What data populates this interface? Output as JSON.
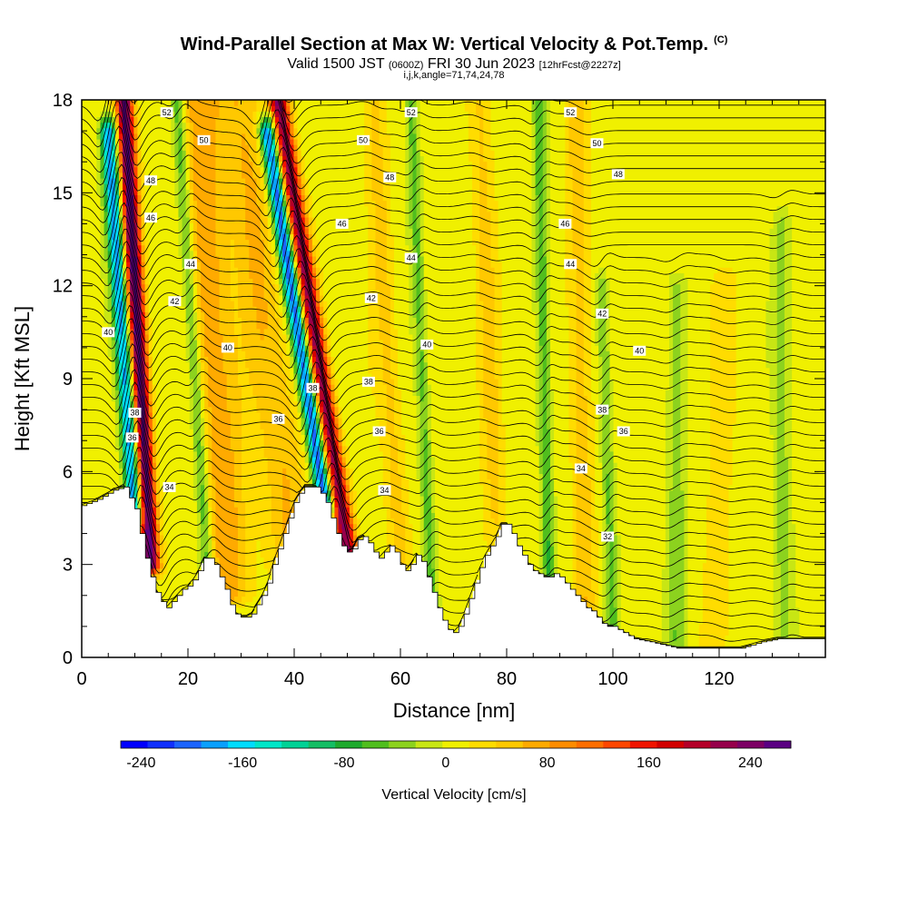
{
  "header": {
    "title": "Wind-Parallel Section at Max W: Vertical Velocity & Pot.Temp.",
    "copyright_mark": "(C)",
    "valid_prefix": "Valid 1500 JST",
    "valid_utc": "(0600Z)",
    "valid_date": "FRI 30 Jun 2023",
    "forecast_info": "[12hrFcst@2227z]",
    "section_indices": "i,j,k,angle=71,74,24,78"
  },
  "chart_data": {
    "type": "heatmap",
    "xlabel": "Distance [nm]",
    "ylabel": "Height [Kft MSL]",
    "xlim": [
      0,
      140
    ],
    "ylim": [
      0,
      18
    ],
    "xticks": [
      0,
      20,
      40,
      60,
      80,
      100,
      120
    ],
    "yticks": [
      0,
      3,
      6,
      9,
      12,
      15,
      18
    ],
    "colorbar": {
      "label": "Vertical Velocity [cm/s]",
      "tick_values": [
        -240,
        -160,
        -80,
        0,
        80,
        160,
        240
      ],
      "tick_labels": [
        "-240",
        "-160",
        "-80",
        "0",
        "80",
        "160",
        "240"
      ],
      "min": -256,
      "max": 272,
      "colors": [
        "#0000ff",
        "#1030ff",
        "#1c64ff",
        "#0aa0ff",
        "#00dcff",
        "#00e6c8",
        "#00d296",
        "#14be64",
        "#1eaa2d",
        "#50be1e",
        "#8cd21e",
        "#c8e614",
        "#f0f000",
        "#ffdc00",
        "#ffc800",
        "#ffaa00",
        "#ff8c00",
        "#ff6e00",
        "#ff4600",
        "#f01400",
        "#d20000",
        "#b40028",
        "#96004b",
        "#7d0064",
        "#5a0082"
      ]
    },
    "terrain": [
      {
        "x": 0,
        "h": 4.9
      },
      {
        "x": 3,
        "h": 5.1
      },
      {
        "x": 6,
        "h": 5.4
      },
      {
        "x": 8,
        "h": 5.5
      },
      {
        "x": 10,
        "h": 4.8
      },
      {
        "x": 11,
        "h": 4
      },
      {
        "x": 12,
        "h": 3.2
      },
      {
        "x": 13,
        "h": 2.6
      },
      {
        "x": 14,
        "h": 2.1
      },
      {
        "x": 15,
        "h": 1.8
      },
      {
        "x": 16,
        "h": 1.6
      },
      {
        "x": 17,
        "h": 1.8
      },
      {
        "x": 18,
        "h": 2
      },
      {
        "x": 19,
        "h": 2.2
      },
      {
        "x": 20,
        "h": 2.3
      },
      {
        "x": 21,
        "h": 2.5
      },
      {
        "x": 22,
        "h": 2.8
      },
      {
        "x": 23,
        "h": 3.2
      },
      {
        "x": 24,
        "h": 3.2
      },
      {
        "x": 25,
        "h": 3
      },
      {
        "x": 26,
        "h": 2.6
      },
      {
        "x": 27,
        "h": 2.2
      },
      {
        "x": 28,
        "h": 1.7
      },
      {
        "x": 29,
        "h": 1.4
      },
      {
        "x": 30,
        "h": 1.3
      },
      {
        "x": 31,
        "h": 1.3
      },
      {
        "x": 32,
        "h": 1.4
      },
      {
        "x": 33,
        "h": 1.7
      },
      {
        "x": 34,
        "h": 2
      },
      {
        "x": 35,
        "h": 2.4
      },
      {
        "x": 36,
        "h": 3
      },
      {
        "x": 37,
        "h": 3.5
      },
      {
        "x": 38,
        "h": 4
      },
      {
        "x": 39,
        "h": 4.5
      },
      {
        "x": 40,
        "h": 5
      },
      {
        "x": 41,
        "h": 5.3
      },
      {
        "x": 42,
        "h": 5.5
      },
      {
        "x": 44,
        "h": 5.5
      },
      {
        "x": 45,
        "h": 5.3
      },
      {
        "x": 46,
        "h": 5
      },
      {
        "x": 47,
        "h": 4.5
      },
      {
        "x": 48,
        "h": 4
      },
      {
        "x": 49,
        "h": 3.6
      },
      {
        "x": 50,
        "h": 3.4
      },
      {
        "x": 51,
        "h": 3.5
      },
      {
        "x": 52,
        "h": 3.8
      },
      {
        "x": 53,
        "h": 3.9
      },
      {
        "x": 54,
        "h": 3.7
      },
      {
        "x": 55,
        "h": 3.4
      },
      {
        "x": 56,
        "h": 3.2
      },
      {
        "x": 57,
        "h": 3.4
      },
      {
        "x": 58,
        "h": 3.6
      },
      {
        "x": 59,
        "h": 3.4
      },
      {
        "x": 60,
        "h": 3
      },
      {
        "x": 61,
        "h": 2.8
      },
      {
        "x": 62,
        "h": 3
      },
      {
        "x": 63,
        "h": 3.3
      },
      {
        "x": 64,
        "h": 3.1
      },
      {
        "x": 65,
        "h": 2.6
      },
      {
        "x": 66,
        "h": 2.1
      },
      {
        "x": 67,
        "h": 1.6
      },
      {
        "x": 68,
        "h": 1.2
      },
      {
        "x": 69,
        "h": 0.9
      },
      {
        "x": 70,
        "h": 0.8
      },
      {
        "x": 71,
        "h": 1
      },
      {
        "x": 72,
        "h": 1.4
      },
      {
        "x": 73,
        "h": 1.9
      },
      {
        "x": 74,
        "h": 2.4
      },
      {
        "x": 75,
        "h": 2.9
      },
      {
        "x": 76,
        "h": 3.3
      },
      {
        "x": 77,
        "h": 3.6
      },
      {
        "x": 78,
        "h": 3.9
      },
      {
        "x": 79,
        "h": 4.3
      },
      {
        "x": 80,
        "h": 4.3
      },
      {
        "x": 81,
        "h": 4
      },
      {
        "x": 82,
        "h": 3.6
      },
      {
        "x": 83,
        "h": 3.3
      },
      {
        "x": 84,
        "h": 3
      },
      {
        "x": 85,
        "h": 2.8
      },
      {
        "x": 86,
        "h": 2.7
      },
      {
        "x": 87,
        "h": 2.6
      },
      {
        "x": 88,
        "h": 2.6
      },
      {
        "x": 89,
        "h": 2.7
      },
      {
        "x": 90,
        "h": 2.6
      },
      {
        "x": 91,
        "h": 2.4
      },
      {
        "x": 92,
        "h": 2.2
      },
      {
        "x": 93,
        "h": 2
      },
      {
        "x": 94,
        "h": 1.8
      },
      {
        "x": 95,
        "h": 1.6
      },
      {
        "x": 96,
        "h": 1.5
      },
      {
        "x": 97,
        "h": 1.3
      },
      {
        "x": 98,
        "h": 1.1
      },
      {
        "x": 99,
        "h": 1
      },
      {
        "x": 100,
        "h": 1
      },
      {
        "x": 102,
        "h": 0.8
      },
      {
        "x": 104,
        "h": 0.6
      },
      {
        "x": 107,
        "h": 0.5
      },
      {
        "x": 112,
        "h": 0.3
      },
      {
        "x": 116,
        "h": 0.3
      },
      {
        "x": 120,
        "h": 0.3
      },
      {
        "x": 124,
        "h": 0.3
      },
      {
        "x": 128,
        "h": 0.5
      },
      {
        "x": 131,
        "h": 0.6
      },
      {
        "x": 134,
        "h": 0.6
      },
      {
        "x": 140,
        "h": 0.6
      }
    ],
    "updraft_bands": [
      {
        "x_base": 13,
        "x_top": 8,
        "z_base": 3,
        "z_top": 18,
        "w": 260,
        "width": 1.6
      },
      {
        "x_base": 10,
        "x_top": 5,
        "z_base": 4.5,
        "z_top": 17,
        "w": -200,
        "width": 1.5
      },
      {
        "x_base": 50,
        "x_top": 37,
        "z_base": 3.5,
        "z_top": 18,
        "w": 220,
        "width": 1.8
      },
      {
        "x_base": 46,
        "x_top": 35,
        "z_base": 4.8,
        "z_top": 17,
        "w": -230,
        "width": 1.6
      },
      {
        "x_base": 28,
        "x_top": 22,
        "z_base": 2,
        "z_top": 18,
        "w": 70,
        "width": 4
      },
      {
        "x_base": 40,
        "x_top": 30,
        "z_base": 3,
        "z_top": 18,
        "w": 55,
        "width": 4
      },
      {
        "x_base": 24,
        "x_top": 18,
        "z_base": 2,
        "z_top": 18,
        "w": -80,
        "width": 1.3
      },
      {
        "x_base": 60,
        "x_top": 55,
        "z_base": 3,
        "z_top": 18,
        "w": 40,
        "width": 2
      },
      {
        "x_base": 66,
        "x_top": 62,
        "z_base": 1,
        "z_top": 18,
        "w": -60,
        "width": 1.2
      },
      {
        "x_base": 78,
        "x_top": 75,
        "z_base": 3,
        "z_top": 18,
        "w": 35,
        "width": 2
      },
      {
        "x_base": 88,
        "x_top": 86,
        "z_base": 2,
        "z_top": 18,
        "w": -70,
        "width": 1.2
      },
      {
        "x_base": 95,
        "x_top": 93,
        "z_base": 1,
        "z_top": 18,
        "w": 45,
        "width": 2
      },
      {
        "x_base": 100,
        "x_top": 98,
        "z_base": 1,
        "z_top": 12,
        "w": -55,
        "width": 1.2
      },
      {
        "x_base": 112,
        "x_top": 112,
        "z_base": 0.5,
        "z_top": 12,
        "w": -45,
        "width": 1.8
      },
      {
        "x_base": 120,
        "x_top": 120,
        "z_base": 0.5,
        "z_top": 12,
        "w": 30,
        "width": 2
      },
      {
        "x_base": 132,
        "x_top": 132,
        "z_base": 0.5,
        "z_top": 14,
        "w": -40,
        "width": 1.6
      }
    ],
    "theta_levels": [
      30,
      32,
      34,
      36,
      38,
      40,
      42,
      44,
      46,
      48,
      50,
      52
    ],
    "contour_labels": [
      {
        "text": "52",
        "x": 16,
        "z": 17.6
      },
      {
        "text": "50",
        "x": 23,
        "z": 16.7
      },
      {
        "text": "48",
        "x": 13,
        "z": 15.4
      },
      {
        "text": "46",
        "x": 13,
        "z": 14.2
      },
      {
        "text": "44",
        "x": 20.5,
        "z": 12.7
      },
      {
        "text": "42",
        "x": 17.5,
        "z": 11.5
      },
      {
        "text": "40",
        "x": 5,
        "z": 10.5
      },
      {
        "text": "40",
        "x": 27.5,
        "z": 10
      },
      {
        "text": "38",
        "x": 10,
        "z": 7.9
      },
      {
        "text": "36",
        "x": 9.5,
        "z": 7.1
      },
      {
        "text": "34",
        "x": 16.5,
        "z": 5.5
      },
      {
        "text": "36",
        "x": 37,
        "z": 7.7
      },
      {
        "text": "38",
        "x": 43.5,
        "z": 8.7
      },
      {
        "text": "46",
        "x": 49,
        "z": 14
      },
      {
        "text": "42",
        "x": 54.5,
        "z": 11.6
      },
      {
        "text": "38",
        "x": 54,
        "z": 8.9
      },
      {
        "text": "36",
        "x": 56,
        "z": 7.3
      },
      {
        "text": "34",
        "x": 57,
        "z": 5.4
      },
      {
        "text": "52",
        "x": 62,
        "z": 17.6
      },
      {
        "text": "50",
        "x": 53,
        "z": 16.7
      },
      {
        "text": "48",
        "x": 58,
        "z": 15.5
      },
      {
        "text": "44",
        "x": 62,
        "z": 12.9
      },
      {
        "text": "40",
        "x": 65,
        "z": 10.1
      },
      {
        "text": "52",
        "x": 92,
        "z": 17.6
      },
      {
        "text": "50",
        "x": 97,
        "z": 16.6
      },
      {
        "text": "48",
        "x": 101,
        "z": 15.6
      },
      {
        "text": "46",
        "x": 91,
        "z": 14
      },
      {
        "text": "44",
        "x": 92,
        "z": 12.7
      },
      {
        "text": "42",
        "x": 98,
        "z": 11.1
      },
      {
        "text": "40",
        "x": 105,
        "z": 9.9
      },
      {
        "text": "38",
        "x": 98,
        "z": 8
      },
      {
        "text": "36",
        "x": 102,
        "z": 7.3
      },
      {
        "text": "34",
        "x": 94,
        "z": 6.1
      },
      {
        "text": "32",
        "x": 99,
        "z": 3.9
      }
    ]
  }
}
